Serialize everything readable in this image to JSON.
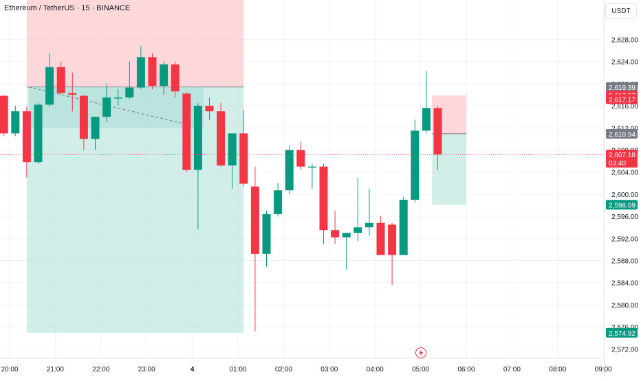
{
  "header": {
    "title": "Ethereum / TetherUS · 15 · BINANCE",
    "currency": "USDT"
  },
  "colors": {
    "up": "#089981",
    "down": "#f23645",
    "grid": "#f0f3fa",
    "axis_text": "#131722",
    "profit_zone": "#a6ddd3",
    "loss_zone": "#fbc3c7",
    "price_line": "#f23645"
  },
  "chart_data": {
    "type": "candlestick",
    "x_ticks": [
      {
        "x": 0,
        "label": "20:00"
      },
      {
        "x": 4,
        "label": "21:00"
      },
      {
        "x": 8,
        "label": "22:00"
      },
      {
        "x": 12,
        "label": "23:00"
      },
      {
        "x": 16,
        "label": "4"
      },
      {
        "x": 20,
        "label": "01:00"
      },
      {
        "x": 24,
        "label": "02:00"
      },
      {
        "x": 28,
        "label": "03:00"
      },
      {
        "x": 32,
        "label": "04:00"
      },
      {
        "x": 36,
        "label": "05:00"
      },
      {
        "x": 40,
        "label": "06:00"
      },
      {
        "x": 44,
        "label": "07:00"
      },
      {
        "x": 48,
        "label": "08:00"
      },
      {
        "x": 52,
        "label": "09:00"
      }
    ],
    "y_ticks": [
      2572,
      2576,
      2580,
      2584,
      2588,
      2592,
      2596,
      2600,
      2604,
      2608,
      2612,
      2616,
      2620,
      2624,
      2628
    ],
    "y_range": [
      2570.2,
      2634.2
    ],
    "candles": [
      {
        "x": -0.5,
        "o": 2617.8,
        "h": 2618.0,
        "l": 2610.5,
        "c": 2611.0
      },
      {
        "x": 0.5,
        "o": 2611.0,
        "h": 2616.0,
        "l": 2610.5,
        "c": 2615.0
      },
      {
        "x": 1.5,
        "o": 2615.0,
        "h": 2615.8,
        "l": 2603.0,
        "c": 2605.8
      },
      {
        "x": 2.5,
        "o": 2605.8,
        "h": 2616.5,
        "l": 2605.5,
        "c": 2616.2
      },
      {
        "x": 3.5,
        "o": 2616.2,
        "h": 2625.5,
        "l": 2615.8,
        "c": 2623.0
      },
      {
        "x": 4.5,
        "o": 2623.0,
        "h": 2624.0,
        "l": 2618.0,
        "c": 2618.3
      },
      {
        "x": 5.5,
        "o": 2618.3,
        "h": 2622.0,
        "l": 2615.0,
        "c": 2618.0
      },
      {
        "x": 6.5,
        "o": 2617.8,
        "h": 2618.0,
        "l": 2608.0,
        "c": 2610.0
      },
      {
        "x": 7.5,
        "o": 2610.0,
        "h": 2614.0,
        "l": 2608.0,
        "c": 2614.0
      },
      {
        "x": 8.5,
        "o": 2614.0,
        "h": 2620.0,
        "l": 2613.0,
        "c": 2617.5
      },
      {
        "x": 9.5,
        "o": 2617.5,
        "h": 2619.0,
        "l": 2616.0,
        "c": 2617.5
      },
      {
        "x": 10.5,
        "o": 2617.5,
        "h": 2624.0,
        "l": 2617.2,
        "c": 2619.3
      },
      {
        "x": 11.5,
        "o": 2619.3,
        "h": 2626.8,
        "l": 2619.0,
        "c": 2624.8
      },
      {
        "x": 12.5,
        "o": 2624.8,
        "h": 2625.5,
        "l": 2619.0,
        "c": 2619.6
      },
      {
        "x": 13.5,
        "o": 2619.6,
        "h": 2624.0,
        "l": 2618.0,
        "c": 2623.5
      },
      {
        "x": 14.5,
        "o": 2623.5,
        "h": 2624.0,
        "l": 2617.5,
        "c": 2618.6
      },
      {
        "x": 15.5,
        "o": 2618.2,
        "h": 2618.5,
        "l": 2604.0,
        "c": 2604.4
      },
      {
        "x": 16.5,
        "o": 2604.4,
        "h": 2616.5,
        "l": 2593.6,
        "c": 2616.0
      },
      {
        "x": 17.5,
        "o": 2616.0,
        "h": 2617.5,
        "l": 2613.5,
        "c": 2615.0
      },
      {
        "x": 18.5,
        "o": 2615.0,
        "h": 2616.5,
        "l": 2605.0,
        "c": 2605.2
      },
      {
        "x": 19.5,
        "o": 2605.2,
        "h": 2611.0,
        "l": 2601.0,
        "c": 2611.0
      },
      {
        "x": 20.5,
        "o": 2611.0,
        "h": 2615.2,
        "l": 2601.5,
        "c": 2601.9
      },
      {
        "x": 21.5,
        "o": 2601.4,
        "h": 2605.0,
        "l": 2575.2,
        "c": 2589.2
      },
      {
        "x": 22.5,
        "o": 2589.2,
        "h": 2597.0,
        "l": 2586.9,
        "c": 2596.4
      },
      {
        "x": 23.5,
        "o": 2596.4,
        "h": 2602.0,
        "l": 2596.0,
        "c": 2600.7
      },
      {
        "x": 24.5,
        "o": 2600.7,
        "h": 2608.8,
        "l": 2600.0,
        "c": 2608.0
      },
      {
        "x": 25.5,
        "o": 2608.0,
        "h": 2609.5,
        "l": 2604.4,
        "c": 2605.0
      },
      {
        "x": 26.5,
        "o": 2605.0,
        "h": 2605.5,
        "l": 2601.0,
        "c": 2605.0
      },
      {
        "x": 27.5,
        "o": 2605.0,
        "h": 2605.5,
        "l": 2591.0,
        "c": 2593.5
      },
      {
        "x": 28.5,
        "o": 2593.5,
        "h": 2597.0,
        "l": 2591.0,
        "c": 2592.2
      },
      {
        "x": 29.5,
        "o": 2592.2,
        "h": 2593.0,
        "l": 2586.4,
        "c": 2593.0
      },
      {
        "x": 30.5,
        "o": 2593.0,
        "h": 2603.0,
        "l": 2591.5,
        "c": 2594.0
      },
      {
        "x": 31.5,
        "o": 2594.0,
        "h": 2601.0,
        "l": 2592.5,
        "c": 2594.8
      },
      {
        "x": 32.5,
        "o": 2594.8,
        "h": 2596.0,
        "l": 2589.0,
        "c": 2589.0
      },
      {
        "x": 33.5,
        "o": 2594.5,
        "h": 2594.8,
        "l": 2583.6,
        "c": 2589.0
      },
      {
        "x": 34.5,
        "o": 2589.0,
        "h": 2599.5,
        "l": 2589.0,
        "c": 2599.0
      },
      {
        "x": 35.5,
        "o": 2599.0,
        "h": 2613.5,
        "l": 2598.5,
        "c": 2611.5
      },
      {
        "x": 36.5,
        "o": 2611.5,
        "h": 2622.3,
        "l": 2611.0,
        "c": 2615.6
      },
      {
        "x": 37.5,
        "o": 2615.6,
        "h": 2616.0,
        "l": 2604.4,
        "c": 2607.2
      }
    ],
    "price_labels": [
      {
        "value": 2619.39,
        "label": "2,619.39",
        "kind": "gray"
      },
      {
        "value": 2617.87,
        "label": "2,617.87",
        "kind": "red"
      },
      {
        "value": 2617.17,
        "label": "2,617.17",
        "kind": "red"
      },
      {
        "value": 2610.94,
        "label": "2,610.94",
        "kind": "gray"
      },
      {
        "value": 2607.18,
        "label": "2,607.18",
        "kind": "red-current",
        "countdown": "03:40"
      },
      {
        "value": 2598.09,
        "label": "2,598.09",
        "kind": "green"
      },
      {
        "value": 2574.92,
        "label": "2,574.92",
        "kind": "green"
      }
    ],
    "positions": [
      {
        "x_start": 1.5,
        "x_end": 20.5,
        "entry": 2619.39,
        "target": 2574.92,
        "stop": 2636.0,
        "filled_low": 2612.0
      },
      {
        "x_start": 37.0,
        "x_end": 40.0,
        "entry": 2610.94,
        "target": 2598.09,
        "stop": 2617.87
      }
    ]
  }
}
